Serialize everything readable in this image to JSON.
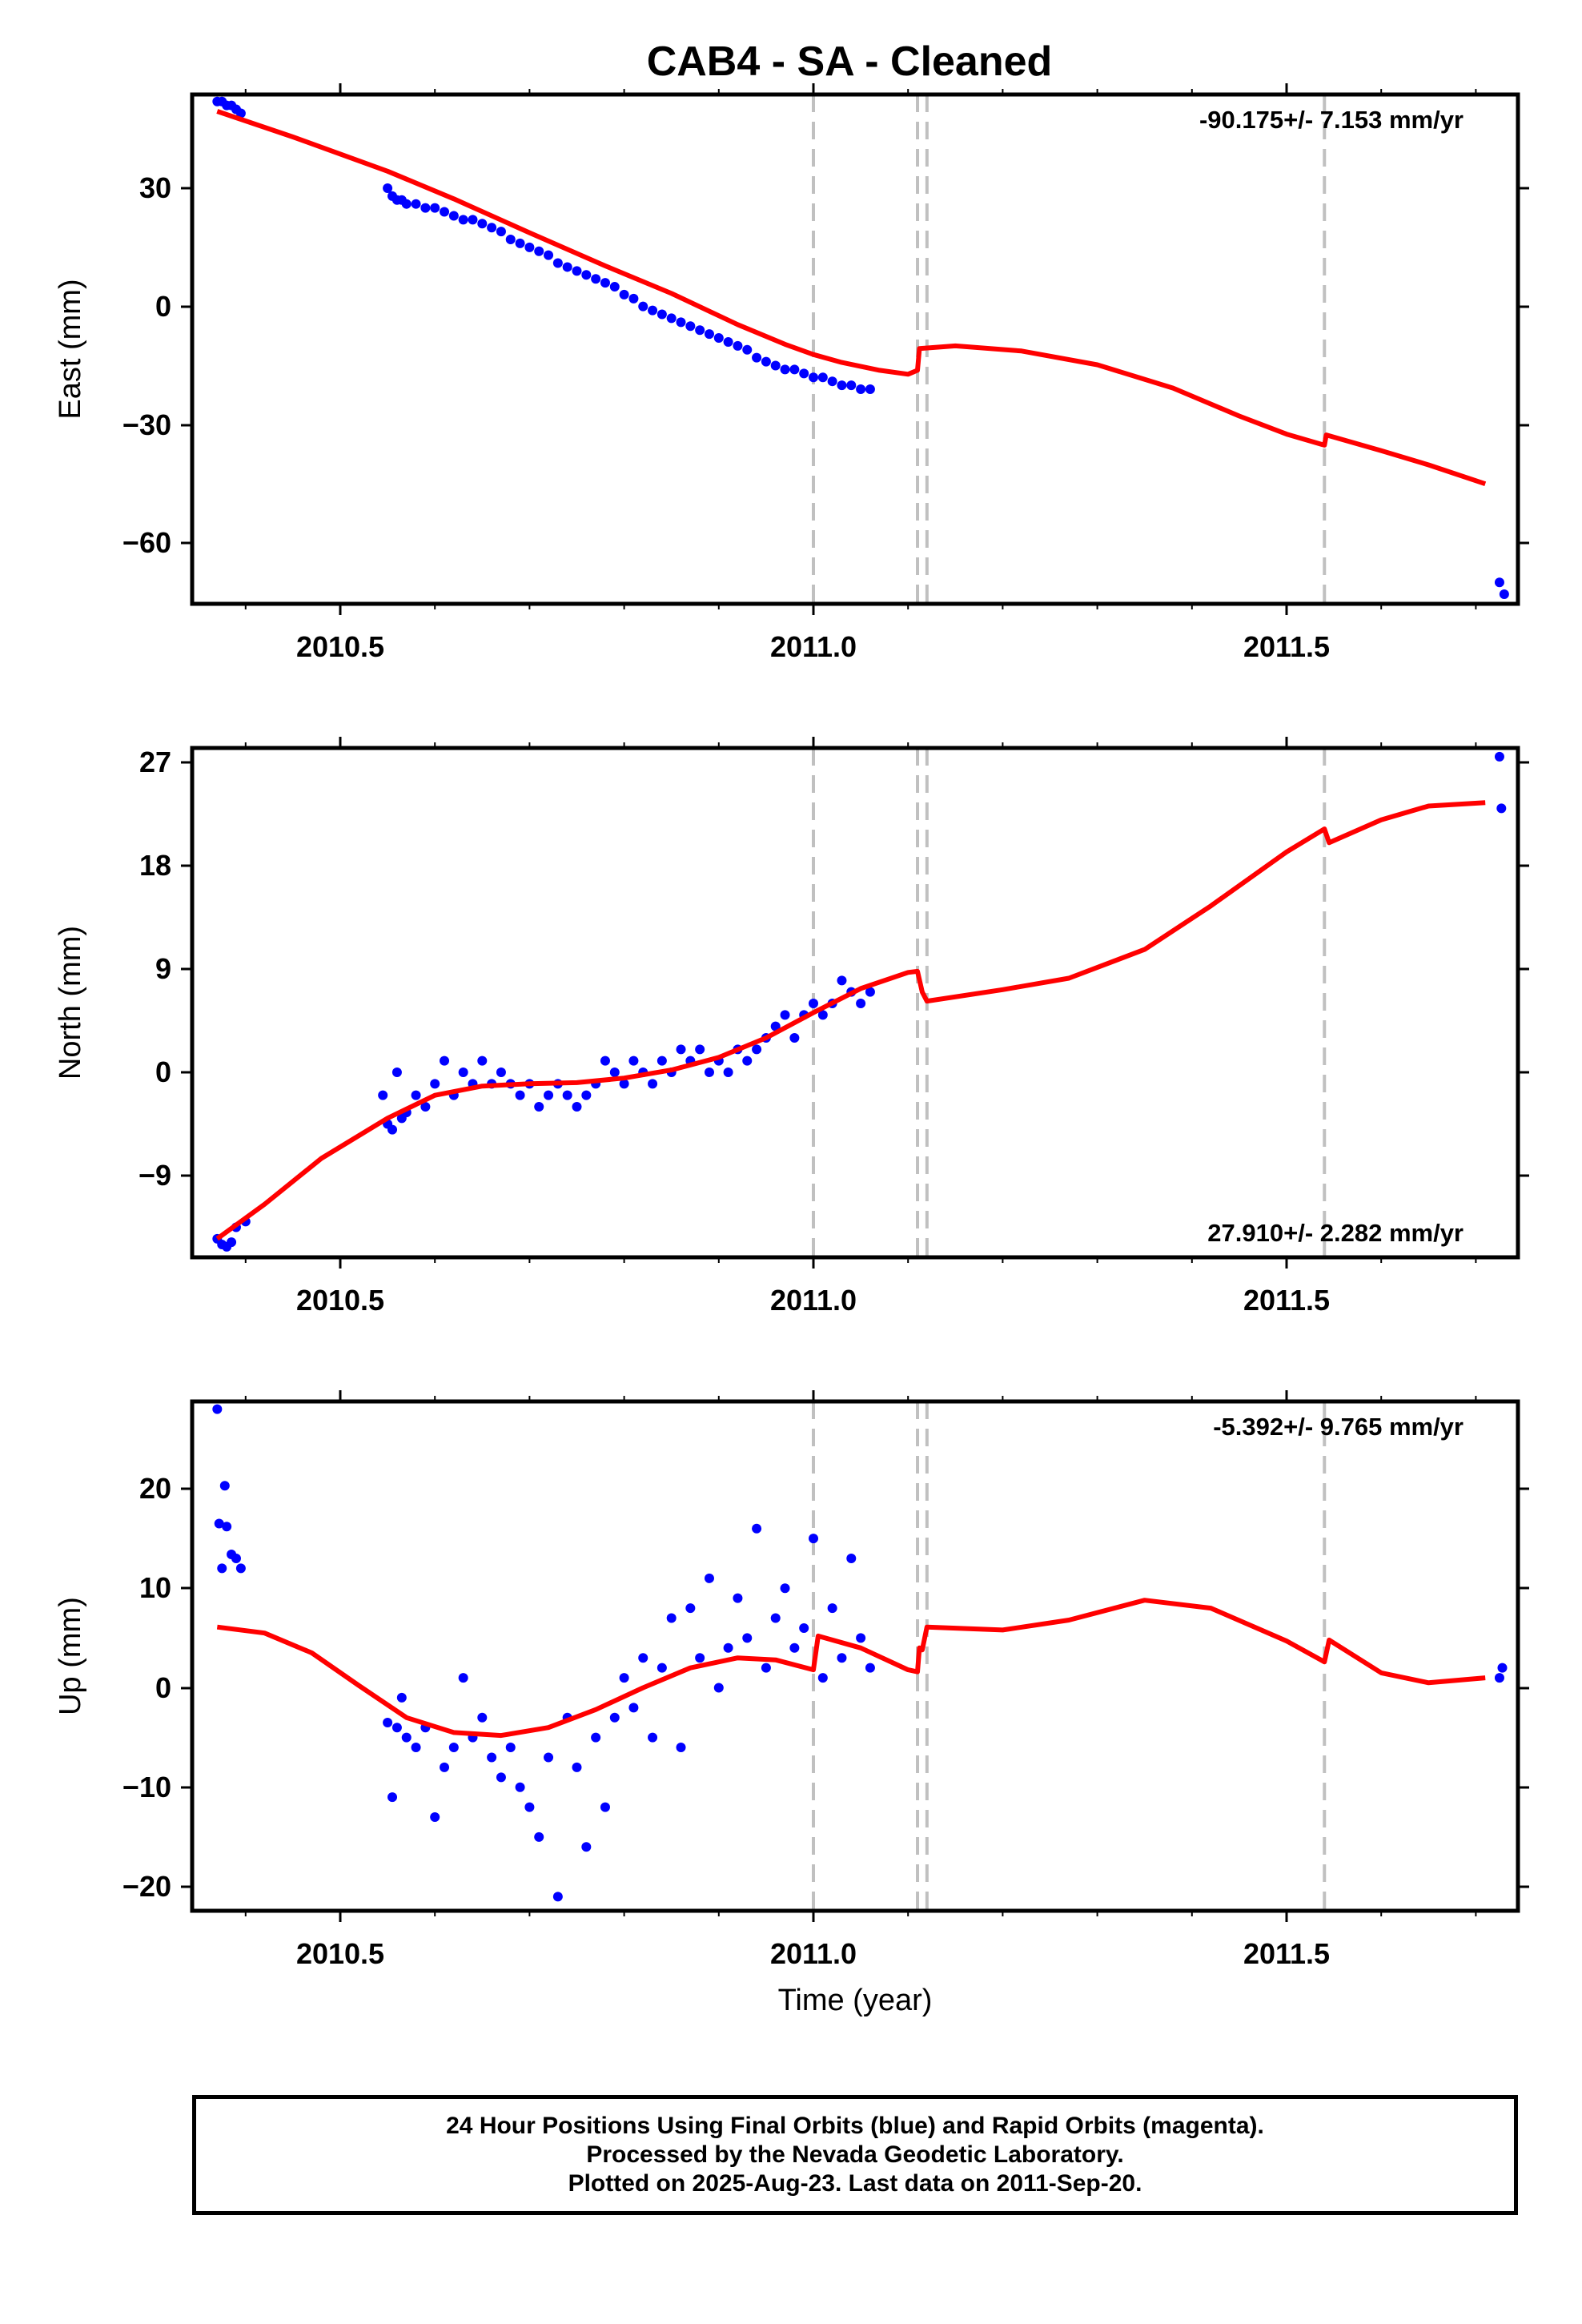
{
  "title": "CAB4  - SA - Cleaned",
  "colors": {
    "data_points": "#0000ff",
    "model_line": "#ff0000",
    "event_lines": "#c0c0c0",
    "frame": "#000000"
  },
  "caption": {
    "line1": "24 Hour Positions Using Final Orbits (blue) and Rapid Orbits (magenta).",
    "line2": "Processed by the Nevada Geodetic Laboratory.",
    "line3": "Plotted on 2025-Aug-23. Last data on 2011-Sep-20."
  },
  "chart_data": [
    {
      "type": "scatter",
      "panel": "east",
      "ylabel": "East (mm)",
      "xlabel": "",
      "xlim": [
        2010.34,
        2011.75
      ],
      "ylim": [
        -75,
        53
      ],
      "x_ticks": [
        "2010.5",
        "2011.0",
        "2011.5"
      ],
      "y_ticks": [
        "30",
        "0",
        "−30",
        "−60"
      ],
      "rate_label": "-90.175+/- 7.153 mm/yr",
      "rate_label_position": "top-right",
      "event_lines_x": [
        2011.0,
        2011.11,
        2011.12,
        2011.54
      ],
      "model_line": [
        [
          2010.37,
          49.5
        ],
        [
          2010.45,
          43
        ],
        [
          2010.55,
          34.3
        ],
        [
          2010.62,
          27.3
        ],
        [
          2010.7,
          18.7
        ],
        [
          2010.78,
          10.3
        ],
        [
          2010.85,
          3.3
        ],
        [
          2010.92,
          -4.6
        ],
        [
          2010.97,
          -9.6
        ],
        [
          2011.0,
          -12.2
        ],
        [
          2011.03,
          -14.2
        ],
        [
          2011.07,
          -16.2
        ],
        [
          2011.1,
          -17.2
        ],
        [
          2011.11,
          -16.2
        ],
        [
          2011.112,
          -10.7
        ],
        [
          2011.15,
          -10
        ],
        [
          2011.22,
          -11.3
        ],
        [
          2011.3,
          -14.8
        ],
        [
          2011.38,
          -20.7
        ],
        [
          2011.45,
          -27.8
        ],
        [
          2011.5,
          -32.4
        ],
        [
          2011.54,
          -35.2
        ],
        [
          2011.542,
          -32.6
        ],
        [
          2011.6,
          -36.6
        ],
        [
          2011.65,
          -40.2
        ],
        [
          2011.71,
          -45
        ]
      ],
      "points": [
        [
          2010.37,
          52
        ],
        [
          2010.375,
          52
        ],
        [
          2010.38,
          51
        ],
        [
          2010.385,
          51
        ],
        [
          2010.39,
          50
        ],
        [
          2010.395,
          49
        ],
        [
          2010.55,
          30
        ],
        [
          2010.555,
          28
        ],
        [
          2010.56,
          27
        ],
        [
          2010.565,
          27
        ],
        [
          2010.57,
          26
        ],
        [
          2010.58,
          26
        ],
        [
          2010.59,
          25
        ],
        [
          2010.6,
          25
        ],
        [
          2010.61,
          24
        ],
        [
          2010.62,
          23
        ],
        [
          2010.63,
          22
        ],
        [
          2010.64,
          22
        ],
        [
          2010.65,
          21
        ],
        [
          2010.66,
          20
        ],
        [
          2010.67,
          19
        ],
        [
          2010.68,
          17
        ],
        [
          2010.69,
          16
        ],
        [
          2010.7,
          15
        ],
        [
          2010.71,
          14
        ],
        [
          2010.72,
          13
        ],
        [
          2010.73,
          11
        ],
        [
          2010.74,
          10
        ],
        [
          2010.75,
          9
        ],
        [
          2010.76,
          8
        ],
        [
          2010.77,
          7
        ],
        [
          2010.78,
          6
        ],
        [
          2010.79,
          5
        ],
        [
          2010.8,
          3
        ],
        [
          2010.81,
          2
        ],
        [
          2010.82,
          0
        ],
        [
          2010.83,
          -1
        ],
        [
          2010.84,
          -2
        ],
        [
          2010.85,
          -3
        ],
        [
          2010.86,
          -4
        ],
        [
          2010.87,
          -5
        ],
        [
          2010.88,
          -6
        ],
        [
          2010.89,
          -7
        ],
        [
          2010.9,
          -8
        ],
        [
          2010.91,
          -9
        ],
        [
          2010.92,
          -10
        ],
        [
          2010.93,
          -11
        ],
        [
          2010.94,
          -13
        ],
        [
          2010.95,
          -14
        ],
        [
          2010.96,
          -15
        ],
        [
          2010.97,
          -16
        ],
        [
          2010.98,
          -16
        ],
        [
          2010.99,
          -17
        ],
        [
          2011.0,
          -18
        ],
        [
          2011.01,
          -18
        ],
        [
          2011.02,
          -19
        ],
        [
          2011.03,
          -20
        ],
        [
          2011.04,
          -20
        ],
        [
          2011.05,
          -21
        ],
        [
          2011.06,
          -21
        ],
        [
          2011.725,
          -70
        ],
        [
          2011.73,
          -73
        ]
      ]
    },
    {
      "type": "scatter",
      "panel": "north",
      "ylabel": "North (mm)",
      "xlabel": "",
      "xlim": [
        2010.34,
        2011.75
      ],
      "ylim": [
        -16,
        28
      ],
      "x_ticks": [
        "2010.5",
        "2011.0",
        "2011.5"
      ],
      "y_ticks": [
        "27",
        "18",
        "9",
        "0",
        "−9"
      ],
      "rate_label": "27.910+/- 2.282 mm/yr",
      "rate_label_position": "bottom-right",
      "event_lines_x": [
        2011.0,
        2011.11,
        2011.12,
        2011.54
      ],
      "model_line": [
        [
          2010.37,
          -14.5
        ],
        [
          2010.42,
          -11.5
        ],
        [
          2010.48,
          -7.5
        ],
        [
          2010.55,
          -4
        ],
        [
          2010.6,
          -2
        ],
        [
          2010.65,
          -1.2
        ],
        [
          2010.7,
          -1
        ],
        [
          2010.75,
          -0.9
        ],
        [
          2010.8,
          -0.5
        ],
        [
          2010.85,
          0.2
        ],
        [
          2010.9,
          1.3
        ],
        [
          2010.95,
          3
        ],
        [
          2011.0,
          5.2
        ],
        [
          2011.05,
          7.3
        ],
        [
          2011.1,
          8.7
        ],
        [
          2011.11,
          8.8
        ],
        [
          2011.115,
          7
        ],
        [
          2011.12,
          6.2
        ],
        [
          2011.2,
          7.2
        ],
        [
          2011.27,
          8.2
        ],
        [
          2011.35,
          10.7
        ],
        [
          2011.42,
          14.5
        ],
        [
          2011.5,
          19.2
        ],
        [
          2011.54,
          21.2
        ],
        [
          2011.545,
          20
        ],
        [
          2011.6,
          22
        ],
        [
          2011.65,
          23.2
        ],
        [
          2011.71,
          23.5
        ]
      ],
      "points": [
        [
          2010.37,
          -14.5
        ],
        [
          2010.375,
          -15
        ],
        [
          2010.38,
          -15.2
        ],
        [
          2010.385,
          -14.8
        ],
        [
          2010.39,
          -13.5
        ],
        [
          2010.4,
          -13
        ],
        [
          2010.545,
          -2
        ],
        [
          2010.55,
          -4.5
        ],
        [
          2010.555,
          -5
        ],
        [
          2010.56,
          0
        ],
        [
          2010.565,
          -4
        ],
        [
          2010.57,
          -3.5
        ],
        [
          2010.58,
          -2
        ],
        [
          2010.59,
          -3
        ],
        [
          2010.6,
          -1
        ],
        [
          2010.61,
          1
        ],
        [
          2010.62,
          -2
        ],
        [
          2010.63,
          0
        ],
        [
          2010.64,
          -1
        ],
        [
          2010.65,
          1
        ],
        [
          2010.66,
          -1
        ],
        [
          2010.67,
          0
        ],
        [
          2010.68,
          -1
        ],
        [
          2010.69,
          -2
        ],
        [
          2010.7,
          -1
        ],
        [
          2010.71,
          -3
        ],
        [
          2010.72,
          -2
        ],
        [
          2010.73,
          -1
        ],
        [
          2010.74,
          -2
        ],
        [
          2010.75,
          -3
        ],
        [
          2010.76,
          -2
        ],
        [
          2010.77,
          -1
        ],
        [
          2010.78,
          1
        ],
        [
          2010.79,
          0
        ],
        [
          2010.8,
          -1
        ],
        [
          2010.81,
          1
        ],
        [
          2010.82,
          0
        ],
        [
          2010.83,
          -1
        ],
        [
          2010.84,
          1
        ],
        [
          2010.85,
          0
        ],
        [
          2010.86,
          2
        ],
        [
          2010.87,
          1
        ],
        [
          2010.88,
          2
        ],
        [
          2010.89,
          0
        ],
        [
          2010.9,
          1
        ],
        [
          2010.91,
          0
        ],
        [
          2010.92,
          2
        ],
        [
          2010.93,
          1
        ],
        [
          2010.94,
          2
        ],
        [
          2010.95,
          3
        ],
        [
          2010.96,
          4
        ],
        [
          2010.97,
          5
        ],
        [
          2010.98,
          3
        ],
        [
          2010.99,
          5
        ],
        [
          2011.0,
          6
        ],
        [
          2011.01,
          5
        ],
        [
          2011.02,
          6
        ],
        [
          2011.03,
          8
        ],
        [
          2011.04,
          7
        ],
        [
          2011.05,
          6
        ],
        [
          2011.06,
          7
        ],
        [
          2011.725,
          27.5
        ],
        [
          2011.727,
          23
        ]
      ]
    },
    {
      "type": "scatter",
      "panel": "up",
      "ylabel": "Up (mm)",
      "xlabel": "Time (year)",
      "xlim": [
        2010.34,
        2011.75
      ],
      "ylim": [
        -22.5,
        29
      ],
      "x_ticks": [
        "2010.5",
        "2011.0",
        "2011.5"
      ],
      "y_ticks": [
        "20",
        "10",
        "0",
        "−10",
        "−20"
      ],
      "rate_label": "-5.392+/- 9.765 mm/yr",
      "rate_label_position": "top-right",
      "event_lines_x": [
        2011.0,
        2011.11,
        2011.12,
        2011.54
      ],
      "model_line": [
        [
          2010.37,
          6.1
        ],
        [
          2010.42,
          5.5
        ],
        [
          2010.47,
          3.5
        ],
        [
          2010.52,
          0.2
        ],
        [
          2010.57,
          -3
        ],
        [
          2010.62,
          -4.5
        ],
        [
          2010.67,
          -4.8
        ],
        [
          2010.72,
          -4
        ],
        [
          2010.77,
          -2.2
        ],
        [
          2010.82,
          0
        ],
        [
          2010.87,
          2
        ],
        [
          2010.92,
          3
        ],
        [
          2010.96,
          2.8
        ],
        [
          2011.0,
          1.8
        ],
        [
          2011.005,
          5.2
        ],
        [
          2011.05,
          4
        ],
        [
          2011.1,
          1.8
        ],
        [
          2011.11,
          1.6
        ],
        [
          2011.112,
          4
        ],
        [
          2011.115,
          3.8
        ],
        [
          2011.12,
          6.1
        ],
        [
          2011.2,
          5.8
        ],
        [
          2011.27,
          6.8
        ],
        [
          2011.35,
          8.8
        ],
        [
          2011.42,
          8
        ],
        [
          2011.5,
          4.7
        ],
        [
          2011.54,
          2.6
        ],
        [
          2011.545,
          4.8
        ],
        [
          2011.6,
          1.5
        ],
        [
          2011.65,
          0.5
        ],
        [
          2011.71,
          1
        ]
      ],
      "points": [
        [
          2010.37,
          28
        ],
        [
          2010.372,
          16.5
        ],
        [
          2010.375,
          12
        ],
        [
          2010.378,
          20.3
        ],
        [
          2010.38,
          16.2
        ],
        [
          2010.385,
          13.4
        ],
        [
          2010.39,
          13
        ],
        [
          2010.395,
          12
        ],
        [
          2010.55,
          -3.5
        ],
        [
          2010.555,
          -11
        ],
        [
          2010.56,
          -4
        ],
        [
          2010.565,
          -1
        ],
        [
          2010.57,
          -5
        ],
        [
          2010.58,
          -6
        ],
        [
          2010.59,
          -4
        ],
        [
          2010.6,
          -13
        ],
        [
          2010.61,
          -8
        ],
        [
          2010.62,
          -6
        ],
        [
          2010.63,
          1
        ],
        [
          2010.64,
          -5
        ],
        [
          2010.65,
          -3
        ],
        [
          2010.66,
          -7
        ],
        [
          2010.67,
          -9
        ],
        [
          2010.68,
          -6
        ],
        [
          2010.69,
          -10
        ],
        [
          2010.7,
          -12
        ],
        [
          2010.71,
          -15
        ],
        [
          2010.72,
          -7
        ],
        [
          2010.73,
          -21
        ],
        [
          2010.74,
          -3
        ],
        [
          2010.75,
          -8
        ],
        [
          2010.76,
          -16
        ],
        [
          2010.77,
          -5
        ],
        [
          2010.78,
          -12
        ],
        [
          2010.79,
          -3
        ],
        [
          2010.8,
          1
        ],
        [
          2010.81,
          -2
        ],
        [
          2010.82,
          3
        ],
        [
          2010.83,
          -5
        ],
        [
          2010.84,
          2
        ],
        [
          2010.85,
          7
        ],
        [
          2010.86,
          -6
        ],
        [
          2010.87,
          8
        ],
        [
          2010.88,
          3
        ],
        [
          2010.89,
          11
        ],
        [
          2010.9,
          0
        ],
        [
          2010.91,
          4
        ],
        [
          2010.92,
          9
        ],
        [
          2010.93,
          5
        ],
        [
          2010.94,
          16
        ],
        [
          2010.95,
          2
        ],
        [
          2010.96,
          7
        ],
        [
          2010.97,
          10
        ],
        [
          2010.98,
          4
        ],
        [
          2010.99,
          6
        ],
        [
          2011.0,
          15
        ],
        [
          2011.01,
          1
        ],
        [
          2011.02,
          8
        ],
        [
          2011.03,
          3
        ],
        [
          2011.04,
          13
        ],
        [
          2011.05,
          5
        ],
        [
          2011.06,
          2
        ],
        [
          2011.725,
          1
        ],
        [
          2011.728,
          2
        ]
      ]
    }
  ]
}
